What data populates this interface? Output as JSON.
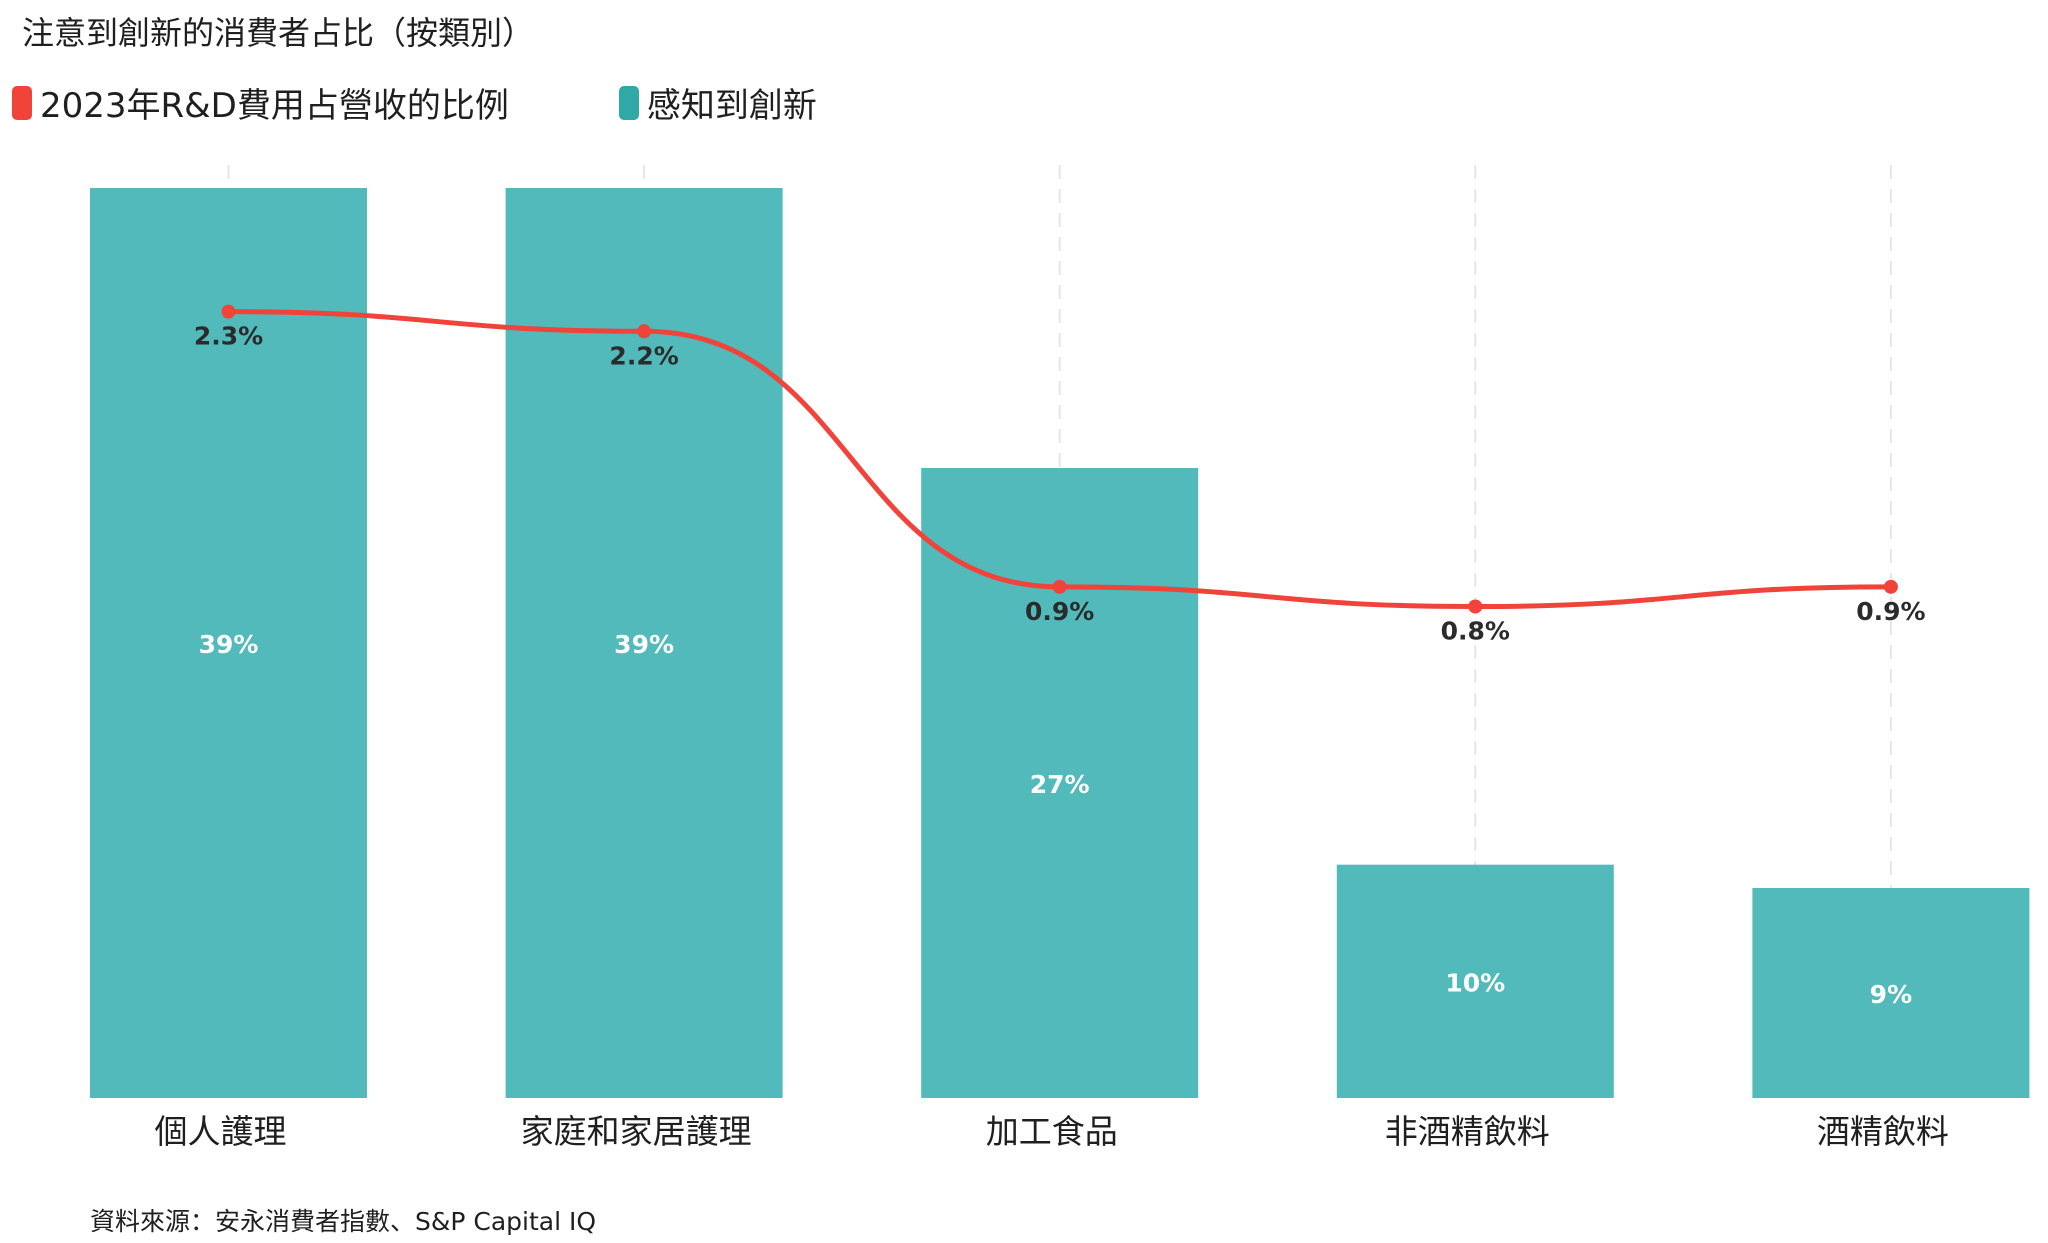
{
  "chart_data": {
    "type": "bar+line",
    "title": "注意到創新的消費者占比（按類別）",
    "categories": [
      "個人護理",
      "家庭和家居護理",
      "加工食品",
      "非酒精飲料",
      "酒精飲料"
    ],
    "series": [
      {
        "name": "感知到創新",
        "type": "bar",
        "color": "#52BABA",
        "values": [
          39,
          39,
          27,
          10,
          9
        ],
        "labels": [
          "39%",
          "39%",
          "27%",
          "10%",
          "9%"
        ]
      },
      {
        "name": "2023年R&D費用占營收的比例",
        "type": "line",
        "color": "#F0433A",
        "values": [
          2.3,
          2.2,
          0.9,
          0.8,
          0.9
        ],
        "labels": [
          "2.3%",
          "2.2%",
          "0.9%",
          "0.8%",
          "0.9%"
        ]
      }
    ],
    "bar_ylim": [
      0,
      39.6
    ],
    "line_ylim": [
      -1.7,
      3.0
    ],
    "grid": "vertical-dashed",
    "legend_position": "top-left",
    "source": "資料來源：安永消費者指數、S&P Capital IQ"
  }
}
